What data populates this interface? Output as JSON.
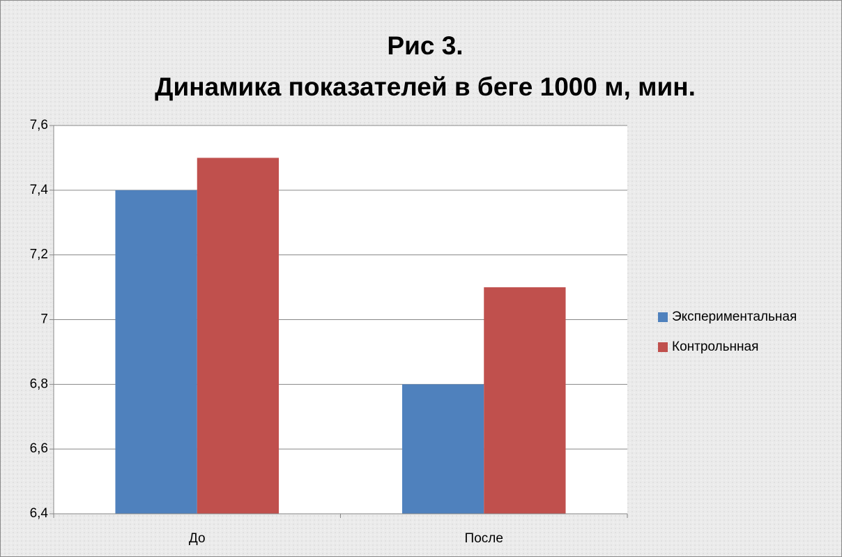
{
  "chart_data": {
    "type": "bar",
    "title": [
      "Рис 3.",
      "Динамика показателей в беге 1000 м, мин."
    ],
    "categories": [
      "До",
      "После"
    ],
    "series": [
      {
        "name": "Экспериментальная",
        "color": "#4f81bd",
        "values": [
          7.4,
          6.8
        ]
      },
      {
        "name": "Контрольнная",
        "color": "#c0504d",
        "values": [
          7.5,
          7.1
        ]
      }
    ],
    "ylim": [
      6.4,
      7.6
    ],
    "yticks": [
      {
        "value": 6.4,
        "label": "6,4"
      },
      {
        "value": 6.6,
        "label": "6,6"
      },
      {
        "value": 6.8,
        "label": "6,8"
      },
      7,
      {
        "value": 7.2,
        "label": "7,2"
      },
      {
        "value": 7.4,
        "label": "7,4"
      },
      {
        "value": 7.6,
        "label": "7,6"
      }
    ],
    "grid": true,
    "legend": "right"
  }
}
